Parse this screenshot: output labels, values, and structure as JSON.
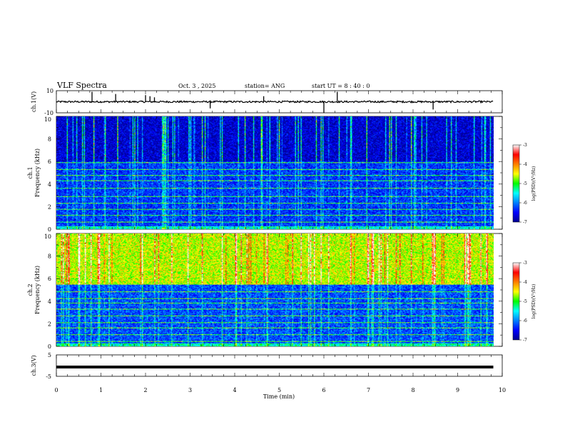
{
  "header": {
    "title": "VLF Spectra",
    "date": "Oct. 3  , 2025",
    "station": "station= ANG",
    "start": "start  UT  =   8  : 40 : 0"
  },
  "chart_data": {
    "type": "heatmap",
    "title": "VLF Spectra",
    "xlabel": "Time  (min)",
    "xlim": [
      0,
      10
    ],
    "xticks": [
      "0",
      "1",
      "2",
      "3",
      "4",
      "5",
      "6",
      "7",
      "8",
      "9",
      "10"
    ],
    "data_end_min": 9.8,
    "panels": [
      {
        "id": "ch1-waveform",
        "type": "line",
        "ylabel": "ch.1(V)",
        "ylim": [
          -10,
          10
        ],
        "yticks": [
          "10",
          "-10"
        ],
        "baseline": 0,
        "spikes": [
          {
            "t": 0.8,
            "v": 9
          },
          {
            "t": 1.33,
            "v": 7
          },
          {
            "t": 2.0,
            "v": 6
          },
          {
            "t": 2.1,
            "v": 5
          },
          {
            "t": 2.2,
            "v": 4
          },
          {
            "t": 3.45,
            "v": -6
          },
          {
            "t": 4.65,
            "v": 5
          },
          {
            "t": 6.0,
            "v": -10
          },
          {
            "t": 6.3,
            "v": 9
          },
          {
            "t": 8.45,
            "v": -7
          }
        ]
      },
      {
        "id": "ch1-spectrogram",
        "type": "heatmap",
        "ylabel_lines": [
          "ch.1",
          "Frequency  (kHz)"
        ],
        "ylim": [
          0,
          10
        ],
        "yticks": [
          "0",
          "2",
          "4",
          "6",
          "8",
          "10"
        ],
        "upper_band_kHz": [
          6,
          10
        ],
        "upper_band_log": -6.7,
        "lower_band_log": -6.3,
        "spark_density": 0.15,
        "bright_lines_kHz": [
          0.6,
          1.2,
          1.75,
          2.3,
          2.9,
          3.6,
          4.3,
          4.75,
          5.3,
          5.9
        ],
        "colorbar": {
          "label": "log(PSD)(V²/Hz)",
          "range": [
            -7,
            -3
          ],
          "ticks": [
            "-3",
            "-4",
            "-5",
            "-6",
            "-7"
          ]
        }
      },
      {
        "id": "ch2-spectrogram",
        "type": "heatmap",
        "ylabel_lines": [
          "ch.2",
          "Frequency  (kHz)"
        ],
        "ylim": [
          0,
          10
        ],
        "yticks": [
          "0",
          "2",
          "4",
          "6",
          "8",
          "10"
        ],
        "upper_band_kHz": [
          5.5,
          10
        ],
        "upper_band_log": -4.6,
        "lower_band_log": -6.2,
        "spark_density": 0.15,
        "bright_lines_kHz": [
          0.4,
          1.0,
          1.6,
          2.1,
          2.7,
          3.3,
          3.8,
          4.2,
          4.8
        ],
        "colorbar": {
          "label": "log(PSD)(V²/Hz)",
          "range": [
            -7,
            -3
          ],
          "ticks": [
            "-3",
            "-4",
            "-5",
            "-6",
            "-7"
          ]
        }
      },
      {
        "id": "ch3-waveform",
        "type": "line",
        "ylabel": "ch.3(V)",
        "ylim": [
          -5,
          5
        ],
        "yticks": [
          "5",
          "-5"
        ],
        "constant_value": 0
      }
    ]
  }
}
